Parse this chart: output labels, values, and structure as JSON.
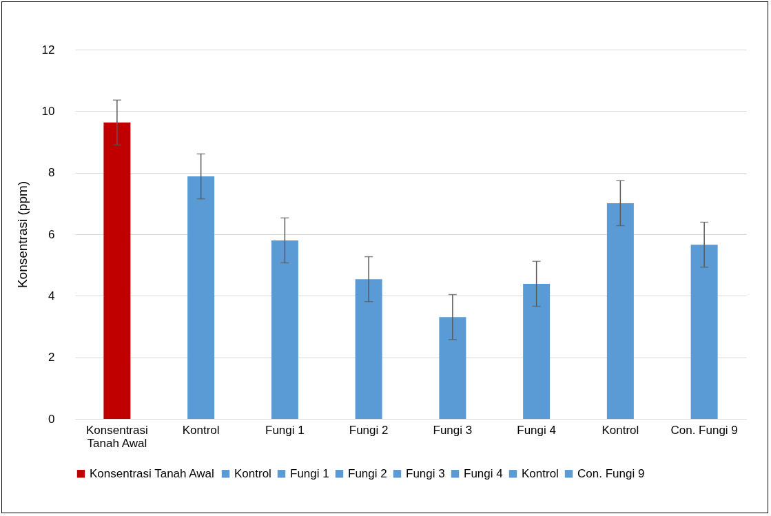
{
  "chart_data": {
    "type": "bar",
    "ylabel": "Konsentrasi (ppm)",
    "categories": [
      "Konsentrasi Tanah Awal",
      "Kontrol",
      "Fungi 1",
      "Fungi 2",
      "Fungi 3",
      "Fungi 4",
      "Kontrol",
      "Con. Fungi 9"
    ],
    "series": [
      {
        "name": "Konsentrasi Tanah Awal",
        "color": "#c00000",
        "values": [
          9.63,
          null,
          null,
          null,
          null,
          null,
          null,
          null
        ],
        "errors": [
          0.73,
          null,
          null,
          null,
          null,
          null,
          null,
          null
        ]
      },
      {
        "name": "Kontrol",
        "color": "#5b9bd5",
        "values": [
          null,
          7.88,
          null,
          null,
          null,
          null,
          null,
          null
        ],
        "errors": [
          null,
          0.73,
          null,
          null,
          null,
          null,
          null,
          null
        ]
      },
      {
        "name": "Fungi 1",
        "color": "#5b9bd5",
        "values": [
          null,
          null,
          5.8,
          null,
          null,
          null,
          null,
          null
        ],
        "errors": [
          null,
          null,
          0.73,
          null,
          null,
          null,
          null,
          null
        ]
      },
      {
        "name": "Fungi 2",
        "color": "#5b9bd5",
        "values": [
          null,
          null,
          null,
          4.54,
          null,
          null,
          null,
          null
        ],
        "errors": [
          null,
          null,
          null,
          0.73,
          null,
          null,
          null,
          null
        ]
      },
      {
        "name": "Fungi 3",
        "color": "#5b9bd5",
        "values": [
          null,
          null,
          null,
          null,
          3.31,
          null,
          null,
          null
        ],
        "errors": [
          null,
          null,
          null,
          null,
          0.73,
          null,
          null,
          null
        ]
      },
      {
        "name": "Fungi 4",
        "color": "#5b9bd5",
        "values": [
          null,
          null,
          null,
          null,
          null,
          4.39,
          null,
          null
        ],
        "errors": [
          null,
          null,
          null,
          null,
          null,
          0.73,
          null,
          null
        ]
      },
      {
        "name": "Kontrol",
        "color": "#5b9bd5",
        "values": [
          null,
          null,
          null,
          null,
          null,
          null,
          7.01,
          null
        ],
        "errors": [
          null,
          null,
          null,
          null,
          null,
          null,
          0.73,
          null
        ]
      },
      {
        "name": "Con. Fungi 9",
        "color": "#5b9bd5",
        "values": [
          null,
          null,
          null,
          null,
          null,
          null,
          null,
          5.66
        ],
        "errors": [
          null,
          null,
          null,
          null,
          null,
          null,
          null,
          0.73
        ]
      }
    ],
    "ylim": [
      0,
      12
    ],
    "yticks": [
      0,
      2,
      4,
      6,
      8,
      10,
      12
    ],
    "grid": "y",
    "legend": "bottom"
  }
}
